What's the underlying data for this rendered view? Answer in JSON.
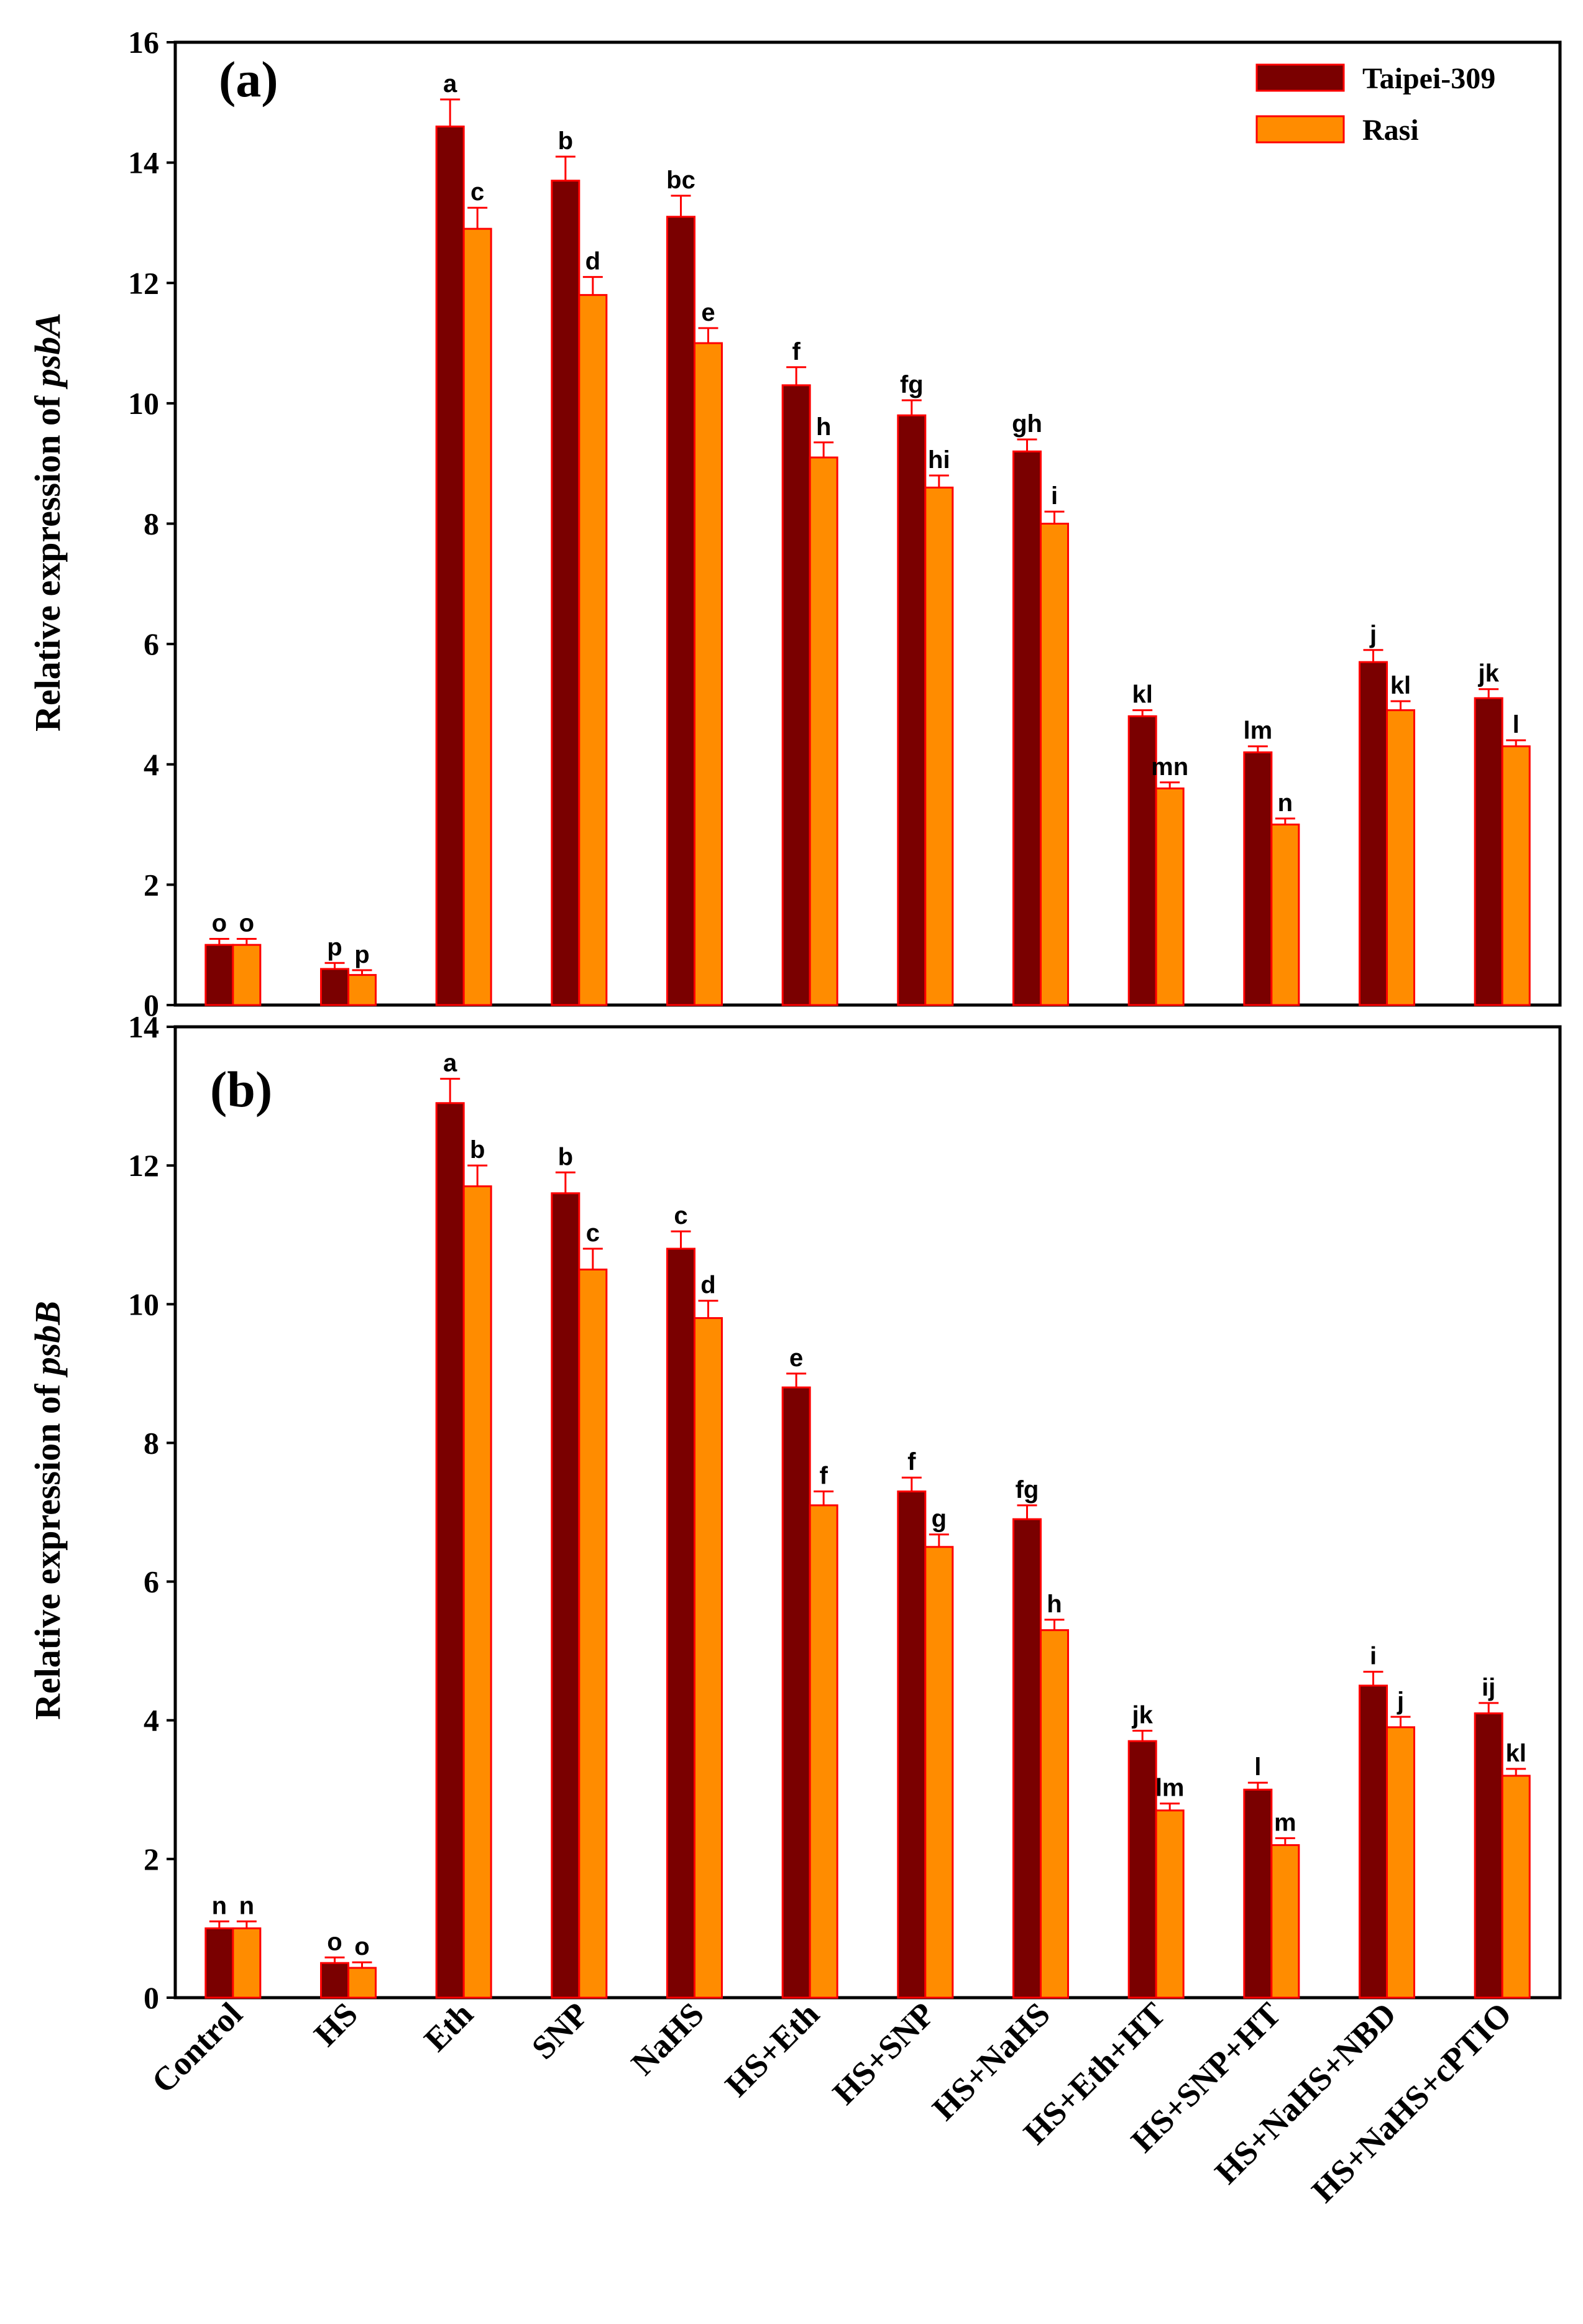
{
  "colors": {
    "taipei": "#7a0000",
    "rasi": "#ff8c00",
    "bar_edge": "#ff0000",
    "axis": "#000000"
  },
  "legend": [
    "Taipei-309",
    "Rasi"
  ],
  "categories": [
    "Control",
    "HS",
    "Eth",
    "SNP",
    "NaHS",
    "HS+Eth",
    "HS+SNP",
    "HS+NaHS",
    "HS+Eth+HT",
    "HS+SNP+HT",
    "HS+NaHS+NBD",
    "HS+NaHS+cPTIO"
  ],
  "chart_data": [
    {
      "type": "bar",
      "panel_label": "(a)",
      "title": "",
      "ylabel_prefix": "Relative expression of ",
      "ylabel_gene": "psbA",
      "ylim": [
        0,
        16
      ],
      "yticks": [
        0,
        2,
        4,
        6,
        8,
        10,
        12,
        14,
        16
      ],
      "legend_position": "top-right",
      "series": [
        {
          "name": "Taipei-309",
          "values": [
            1.0,
            0.6,
            14.6,
            13.7,
            13.1,
            10.3,
            9.8,
            9.2,
            4.8,
            4.2,
            5.7,
            5.1
          ],
          "errors": [
            0.1,
            0.1,
            0.45,
            0.4,
            0.35,
            0.3,
            0.25,
            0.2,
            0.1,
            0.1,
            0.2,
            0.15
          ],
          "letters": [
            "o",
            "p",
            "a",
            "b",
            "bc",
            "f",
            "fg",
            "gh",
            "kl",
            "lm",
            "j",
            "jk"
          ]
        },
        {
          "name": "Rasi",
          "values": [
            1.0,
            0.5,
            12.9,
            11.8,
            11.0,
            9.1,
            8.6,
            8.0,
            3.6,
            3.0,
            4.9,
            4.3
          ],
          "errors": [
            0.1,
            0.08,
            0.35,
            0.3,
            0.25,
            0.25,
            0.2,
            0.2,
            0.1,
            0.1,
            0.15,
            0.1
          ],
          "letters": [
            "o",
            "p",
            "c",
            "d",
            "e",
            "h",
            "hi",
            "i",
            "mn",
            "n",
            "kl",
            "l"
          ]
        }
      ]
    },
    {
      "type": "bar",
      "panel_label": "(b)",
      "title": "",
      "ylabel_prefix": "Relative expression of ",
      "ylabel_gene": "psbB",
      "ylim": [
        0,
        14
      ],
      "yticks": [
        0,
        2,
        4,
        6,
        8,
        10,
        12,
        14
      ],
      "legend_position": "none",
      "series": [
        {
          "name": "Taipei-309",
          "values": [
            1.0,
            0.5,
            12.9,
            11.6,
            10.8,
            8.8,
            7.3,
            6.9,
            3.7,
            3.0,
            4.5,
            4.1
          ],
          "errors": [
            0.1,
            0.08,
            0.35,
            0.3,
            0.25,
            0.2,
            0.2,
            0.2,
            0.15,
            0.1,
            0.2,
            0.15
          ],
          "letters": [
            "n",
            "o",
            "a",
            "b",
            "c",
            "e",
            "f",
            "fg",
            "jk",
            "l",
            "i",
            "ij"
          ]
        },
        {
          "name": "Rasi",
          "values": [
            1.0,
            0.43,
            11.7,
            10.5,
            9.8,
            7.1,
            6.5,
            5.3,
            2.7,
            2.2,
            3.9,
            3.2
          ],
          "errors": [
            0.1,
            0.08,
            0.3,
            0.3,
            0.25,
            0.2,
            0.18,
            0.15,
            0.1,
            0.1,
            0.15,
            0.1
          ],
          "letters": [
            "n",
            "o",
            "b",
            "c",
            "d",
            "f",
            "g",
            "h",
            "lm",
            "m",
            "j",
            "kl"
          ]
        }
      ]
    }
  ]
}
